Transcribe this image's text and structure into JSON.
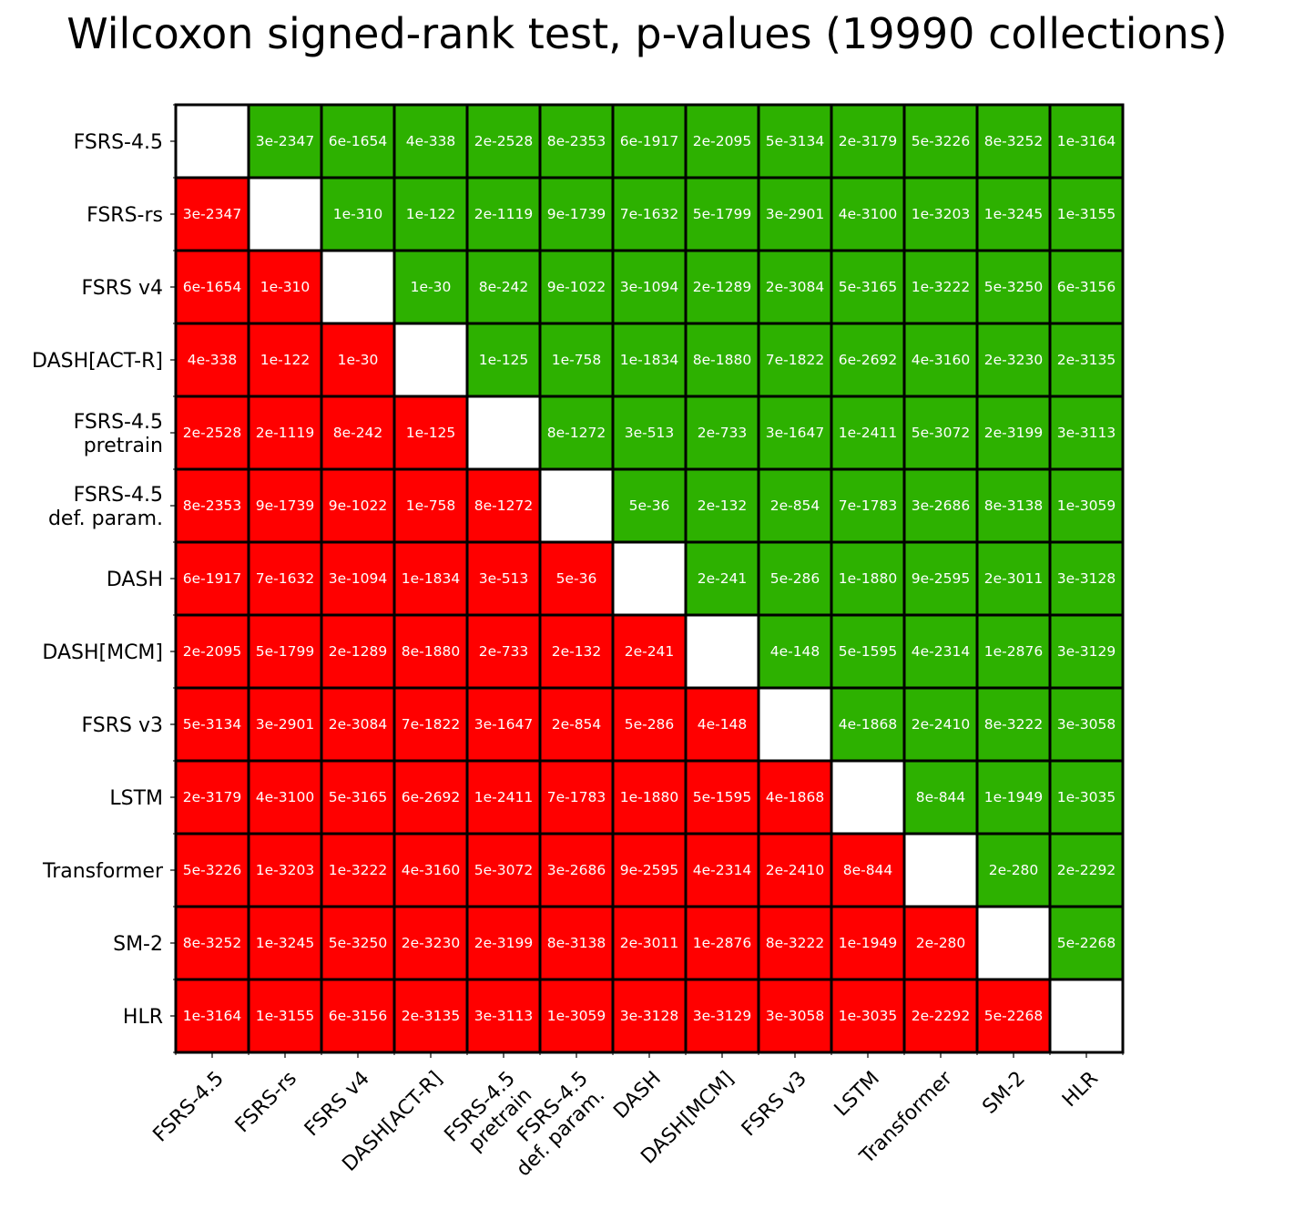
{
  "chart_data": {
    "type": "heatmap",
    "title": "Wilcoxon signed-rank test, p-values (19990 collections)",
    "xlabel": "",
    "ylabel": "",
    "labels": [
      [
        "FSRS-4.5"
      ],
      [
        "FSRS-rs"
      ],
      [
        "FSRS v4"
      ],
      [
        "DASH[ACT-R]"
      ],
      [
        "FSRS-4.5",
        "pretrain"
      ],
      [
        "FSRS-4.5",
        "def. param."
      ],
      [
        "DASH"
      ],
      [
        "DASH[MCM]"
      ],
      [
        "FSRS v3"
      ],
      [
        "LSTM"
      ],
      [
        "Transformer"
      ],
      [
        "SM-2"
      ],
      [
        "HLR"
      ]
    ],
    "colors": {
      "better": "#2db100",
      "worse": "#ff0000",
      "diagonal": "#ffffff",
      "text": "#ffffff",
      "border": "#000000"
    },
    "upper_triangle": [
      [
        "3e-2347",
        "6e-1654",
        "4e-338",
        "2e-2528",
        "8e-2353",
        "6e-1917",
        "2e-2095",
        "5e-3134",
        "2e-3179",
        "5e-3226",
        "8e-3252",
        "1e-3164"
      ],
      [
        "1e-310",
        "1e-122",
        "2e-1119",
        "9e-1739",
        "7e-1632",
        "5e-1799",
        "3e-2901",
        "4e-3100",
        "1e-3203",
        "1e-3245",
        "1e-3155"
      ],
      [
        "1e-30",
        "8e-242",
        "9e-1022",
        "3e-1094",
        "2e-1289",
        "2e-3084",
        "5e-3165",
        "1e-3222",
        "5e-3250",
        "6e-3156"
      ],
      [
        "1e-125",
        "1e-758",
        "1e-1834",
        "8e-1880",
        "7e-1822",
        "6e-2692",
        "4e-3160",
        "2e-3230",
        "2e-3135"
      ],
      [
        "8e-1272",
        "3e-513",
        "2e-733",
        "3e-1647",
        "1e-2411",
        "5e-3072",
        "2e-3199",
        "3e-3113"
      ],
      [
        "5e-36",
        "2e-132",
        "2e-854",
        "7e-1783",
        "3e-2686",
        "8e-3138",
        "1e-3059"
      ],
      [
        "2e-241",
        "5e-286",
        "1e-1880",
        "9e-2595",
        "2e-3011",
        "3e-3128"
      ],
      [
        "4e-148",
        "5e-1595",
        "4e-2314",
        "1e-2876",
        "3e-3129"
      ],
      [
        "4e-1868",
        "2e-2410",
        "8e-3222",
        "3e-3058"
      ],
      [
        "8e-844",
        "1e-1949",
        "1e-3035"
      ],
      [
        "2e-280",
        "2e-2292"
      ],
      [
        "5e-2268"
      ]
    ],
    "note_symmetric": true
  }
}
